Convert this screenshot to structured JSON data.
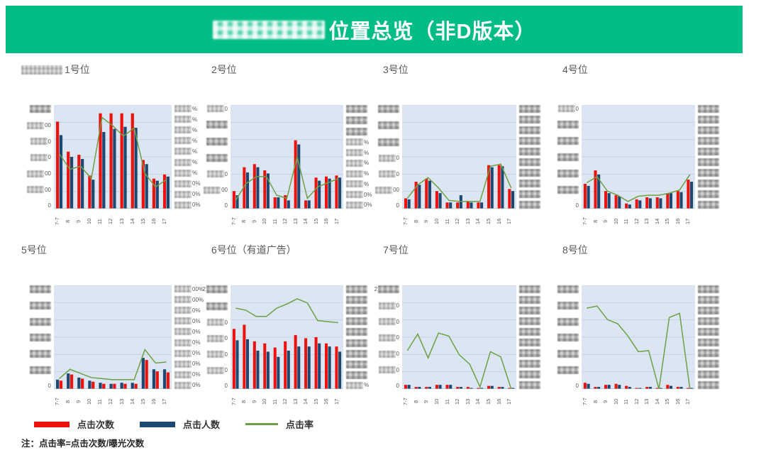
{
  "banner": {
    "title": "位置总览（非D版本）",
    "prefix_redacted": true,
    "bg_color": "#03bd86"
  },
  "colors": {
    "clicks": "#ec120e",
    "users": "#1c4872",
    "rate": "#6da044",
    "plot_bg": "#dce6f2",
    "grid": "#c6d4e6",
    "axis_line": "#a9b6c6",
    "axis_text": "#595959"
  },
  "legend": {
    "items": [
      {
        "key": "clicks",
        "label": "点击次数",
        "swatch": "bar",
        "color": "#ec120e"
      },
      {
        "key": "users",
        "label": "点击人数",
        "swatch": "bar",
        "color": "#1c4872"
      },
      {
        "key": "rate",
        "label": "点击率",
        "swatch": "line",
        "color": "#6da044"
      }
    ]
  },
  "note": "注：点击率=点击次数/曝光次数",
  "chart_data": {
    "type": "bar+line",
    "value_scale": "percent of plot height; numeric axis labels are redacted/blurred in source",
    "categories": [
      "7-7",
      "8",
      "9",
      "10",
      "11",
      "12",
      "13",
      "14",
      "15",
      "16",
      "17"
    ],
    "series_legend": {
      "clicks": "点击次数 (red bars)",
      "users": "点击人数 (navy bars)",
      "rate": "点击率 (green line, right % axis)"
    },
    "charts": [
      {
        "title": "1号位",
        "title_prefix_redacted": true,
        "bar_order": [
          "clicks",
          "users"
        ],
        "clicks": [
          84,
          55,
          52,
          32,
          92,
          92,
          92,
          92,
          47,
          29,
          33
        ],
        "users": [
          71,
          50,
          48,
          28,
          74,
          77,
          79,
          78,
          43,
          27,
          31
        ],
        "rate": [
          53,
          38,
          41,
          29,
          88,
          80,
          70,
          78,
          34,
          21,
          28
        ],
        "left_ticks": [
          {
            "r": true,
            "t": ""
          },
          {
            "r": true,
            "t": "00"
          },
          {
            "r": true,
            "t": "0"
          },
          {
            "r": true,
            "t": "0"
          },
          {
            "r": true,
            "t": "00"
          },
          {
            "r": true,
            "t": "00"
          },
          {
            "r": false,
            "t": "0"
          }
        ],
        "right_ticks": [
          {
            "r": true,
            "t": "%"
          },
          {
            "r": true,
            "t": "%"
          },
          {
            "r": true,
            "t": "%"
          },
          {
            "r": true,
            "t": "%"
          },
          {
            "r": true,
            "t": "%"
          },
          {
            "r": true,
            "t": "%"
          },
          {
            "r": true,
            "t": "%"
          },
          {
            "r": true,
            "t": "0%"
          },
          {
            "r": true,
            "t": "0%"
          },
          {
            "r": true,
            "t": "0%"
          }
        ]
      },
      {
        "title": "2号位",
        "title_prefix_redacted": false,
        "bar_order": [
          "clicks",
          "users"
        ],
        "clicks": [
          17,
          40,
          43,
          37,
          11,
          13,
          66,
          8,
          30,
          31,
          32
        ],
        "users": [
          13,
          35,
          40,
          34,
          11,
          8,
          62,
          8,
          27,
          29,
          30
        ],
        "rate": [
          8,
          24,
          31,
          31,
          13,
          10,
          50,
          10,
          21,
          25,
          29
        ],
        "left_ticks": [
          {
            "r": true,
            "t": "0"
          },
          {
            "r": true,
            "t": ""
          },
          {
            "r": true,
            "t": ""
          },
          {
            "r": true,
            "t": ""
          },
          {
            "r": true,
            "t": "0"
          },
          {
            "r": true,
            "t": "00"
          },
          {
            "r": false,
            "t": "0"
          }
        ],
        "right_ticks": [
          {
            "r": true,
            "t": ""
          },
          {
            "r": true,
            "t": ""
          },
          {
            "r": true,
            "t": ""
          },
          {
            "r": true,
            "t": "%"
          },
          {
            "r": true,
            "t": "%"
          },
          {
            "r": true,
            "t": "%"
          },
          {
            "r": true,
            "t": "%"
          },
          {
            "r": true,
            "t": "%"
          },
          {
            "r": true,
            "t": "0%"
          },
          {
            "r": true,
            "t": "0%"
          }
        ]
      },
      {
        "title": "3号位",
        "title_prefix_redacted": false,
        "bar_order": [
          "clicks",
          "users"
        ],
        "clicks": [
          10,
          26,
          29,
          17,
          6,
          6,
          7,
          6,
          42,
          42,
          19
        ],
        "users": [
          9,
          23,
          27,
          15,
          6,
          13,
          6,
          6,
          40,
          41,
          17
        ],
        "rate": [
          10,
          23,
          30,
          20,
          8,
          7,
          7,
          7,
          41,
          43,
          20
        ],
        "left_ticks": [
          {
            "r": true,
            "t": ""
          },
          {
            "r": true,
            "t": ""
          },
          {
            "r": true,
            "t": ""
          },
          {
            "r": true,
            "t": "0"
          },
          {
            "r": true,
            "t": "0"
          },
          {
            "r": true,
            "t": "00"
          },
          {
            "r": false,
            "t": "0"
          }
        ],
        "right_ticks": [
          {
            "r": true,
            "t": ""
          },
          {
            "r": true,
            "t": ""
          },
          {
            "r": true,
            "t": ""
          },
          {
            "r": true,
            "t": ""
          },
          {
            "r": true,
            "t": ""
          },
          {
            "r": true,
            "t": ""
          },
          {
            "r": true,
            "t": ""
          },
          {
            "r": true,
            "t": ""
          },
          {
            "r": true,
            "t": ""
          },
          {
            "r": true,
            "t": ""
          }
        ]
      },
      {
        "title": "4号位",
        "title_prefix_redacted": false,
        "bar_order": [
          "clicks",
          "users"
        ],
        "clicks": [
          24,
          37,
          17,
          13,
          5,
          9,
          11,
          11,
          15,
          17,
          28
        ],
        "users": [
          22,
          33,
          15,
          12,
          4,
          8,
          10,
          10,
          15,
          16,
          26
        ],
        "rate": [
          25,
          31,
          17,
          13,
          7,
          12,
          13,
          13,
          15,
          18,
          33
        ],
        "left_ticks": [
          {
            "r": true,
            "t": "0"
          },
          {
            "r": true,
            "t": ""
          },
          {
            "r": true,
            "t": ""
          },
          {
            "r": true,
            "t": ""
          },
          {
            "r": true,
            "t": ""
          },
          {
            "r": true,
            "t": ""
          },
          {
            "r": false,
            "t": "0"
          }
        ],
        "right_ticks": [
          {
            "r": true,
            "t": ""
          },
          {
            "r": true,
            "t": ""
          },
          {
            "r": true,
            "t": ""
          },
          {
            "r": true,
            "t": ""
          },
          {
            "r": true,
            "t": ""
          },
          {
            "r": true,
            "t": ""
          },
          {
            "r": true,
            "t": ""
          },
          {
            "r": true,
            "t": ""
          },
          {
            "r": true,
            "t": ""
          },
          {
            "r": true,
            "t": ""
          }
        ]
      },
      {
        "title": "5号位",
        "title_prefix_redacted": false,
        "bar_order": [
          "users",
          "clicks"
        ],
        "clicks": [
          8,
          14,
          10,
          7,
          5,
          5,
          5,
          5,
          28,
          17,
          16
        ],
        "users": [
          9,
          15,
          11,
          8,
          6,
          5,
          6,
          6,
          30,
          19,
          19
        ],
        "rate": [
          10,
          19,
          15,
          11,
          10,
          9,
          9,
          9,
          38,
          25,
          26
        ],
        "left_ticks": [
          {
            "r": true,
            "t": ""
          },
          {
            "r": true,
            "t": ""
          },
          {
            "r": true,
            "t": ""
          },
          {
            "r": true,
            "t": ""
          },
          {
            "r": true,
            "t": ""
          },
          {
            "r": true,
            "t": ""
          },
          {
            "r": false,
            "t": "0"
          }
        ],
        "right_ticks": [
          {
            "r": true,
            "t": "00%"
          },
          {
            "r": true,
            "t": "00%"
          },
          {
            "r": true,
            "t": "0%"
          },
          {
            "r": true,
            "t": "0%"
          },
          {
            "r": true,
            "t": "0%"
          },
          {
            "r": true,
            "t": "0%"
          },
          {
            "r": true,
            "t": "0%"
          },
          {
            "r": true,
            "t": "0%"
          },
          {
            "r": true,
            "t": "0%"
          },
          {
            "r": true,
            "t": "0%"
          }
        ]
      },
      {
        "title": "6号位（有道广告）",
        "title_prefix_redacted": false,
        "bar_order": [
          "clicks",
          "users"
        ],
        "clicks": [
          58,
          62,
          46,
          44,
          40,
          46,
          52,
          49,
          50,
          44,
          41
        ],
        "users": [
          47,
          48,
          37,
          36,
          31,
          37,
          41,
          41,
          44,
          41,
          36
        ],
        "rate": [
          78,
          76,
          70,
          70,
          78,
          82,
          87,
          83,
          66,
          65,
          64
        ],
        "left_ticks": [
          {
            "p": "2",
            "r": true,
            "t": ""
          },
          {
            "r": true,
            "t": ""
          },
          {
            "r": true,
            "t": "0"
          },
          {
            "r": true,
            "t": "0"
          },
          {
            "r": true,
            "t": "0"
          },
          {
            "r": true,
            "t": "0"
          },
          {
            "r": false,
            "t": "0"
          }
        ],
        "right_ticks": [
          {
            "r": true,
            "t": ""
          },
          {
            "r": true,
            "t": ""
          },
          {
            "r": true,
            "t": ""
          },
          {
            "r": true,
            "t": ""
          },
          {
            "r": true,
            "t": ""
          },
          {
            "r": true,
            "t": ""
          },
          {
            "r": true,
            "t": ""
          },
          {
            "r": true,
            "t": ""
          },
          {
            "r": true,
            "t": ""
          },
          {
            "r": true,
            "t": "%"
          }
        ]
      },
      {
        "title": "7号位",
        "title_prefix_redacted": false,
        "bar_order": [
          "clicks",
          "users"
        ],
        "clicks": [
          4,
          2,
          2,
          4,
          4,
          2,
          2,
          1,
          3,
          2,
          1
        ],
        "users": [
          4,
          2,
          2,
          4,
          4,
          2,
          1,
          1,
          3,
          2,
          1
        ],
        "rate": [
          37,
          53,
          30,
          54,
          51,
          33,
          24,
          2,
          36,
          31,
          0
        ],
        "left_ticks": [
          {
            "p": "2",
            "r": true,
            "t": ""
          },
          {
            "r": true,
            "t": "0"
          },
          {
            "r": true,
            "t": "0"
          },
          {
            "r": true,
            "t": "0"
          },
          {
            "r": true,
            "t": "0"
          },
          {
            "r": true,
            "t": "0"
          },
          {
            "r": false,
            "t": "0"
          }
        ],
        "right_ticks": [
          {
            "r": true,
            "t": ""
          },
          {
            "r": true,
            "t": ""
          },
          {
            "r": true,
            "t": ""
          },
          {
            "r": true,
            "t": ""
          },
          {
            "r": true,
            "t": ""
          },
          {
            "r": true,
            "t": ""
          },
          {
            "r": true,
            "t": ""
          },
          {
            "r": true,
            "t": ""
          },
          {
            "r": true,
            "t": ""
          },
          {
            "r": true,
            "t": ""
          }
        ]
      },
      {
        "title": "8号位",
        "title_prefix_redacted": false,
        "bar_order": [
          "clicks",
          "users"
        ],
        "clicks": [
          6,
          2,
          4,
          5,
          3,
          1,
          2,
          1,
          4,
          2,
          1
        ],
        "users": [
          5,
          2,
          4,
          4,
          2,
          1,
          2,
          1,
          3,
          2,
          1
        ],
        "rate": [
          78,
          80,
          67,
          63,
          51,
          36,
          37,
          0,
          69,
          73,
          0
        ],
        "left_ticks": [
          {
            "r": true,
            "t": ""
          },
          {
            "r": true,
            "t": ""
          },
          {
            "r": true,
            "t": ""
          },
          {
            "r": true,
            "t": ""
          },
          {
            "r": true,
            "t": ""
          },
          {
            "r": true,
            "t": ""
          },
          {
            "r": false,
            "t": "0"
          }
        ],
        "right_ticks": [
          {
            "r": true,
            "t": ""
          },
          {
            "r": true,
            "t": ""
          },
          {
            "r": true,
            "t": ""
          },
          {
            "r": true,
            "t": ""
          },
          {
            "r": true,
            "t": ""
          },
          {
            "r": true,
            "t": ""
          },
          {
            "r": true,
            "t": ""
          },
          {
            "r": true,
            "t": ""
          },
          {
            "r": true,
            "t": ""
          },
          {
            "r": true,
            "t": ""
          }
        ]
      }
    ]
  }
}
